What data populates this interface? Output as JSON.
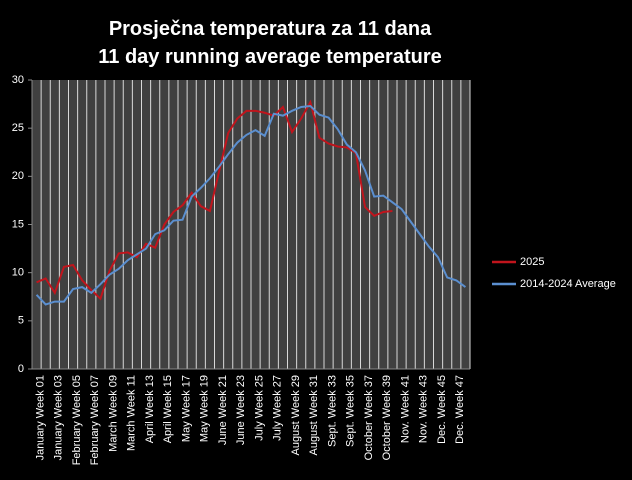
{
  "chart_data": {
    "type": "line",
    "title": [
      "Prosječna temperatura za 11 dana",
      "11 day running average temperature"
    ],
    "categories": [
      "January Week 01",
      null,
      "January Week 03",
      null,
      "February Week 05",
      null,
      "February Week 07",
      null,
      "March Week 09",
      null,
      "March Week 11",
      null,
      "April Week 13",
      null,
      "April Week 15",
      null,
      "May Week 17",
      null,
      "May Week 19",
      null,
      "June Week 21",
      null,
      "June Week 23",
      null,
      "July Week 25",
      null,
      "July Week 27",
      null,
      "August Week 29",
      null,
      "August Week 31",
      null,
      "Sept. Week 33",
      null,
      "Sept. Week 35",
      null,
      "October Week 37",
      null,
      "October Week 39",
      null,
      "Nov. Week 41",
      null,
      "Nov. Week 43",
      null,
      "Dec. Week 45",
      null,
      "Dec. Week 47",
      null
    ],
    "series": [
      {
        "name": "2025",
        "color": "#c0141c",
        "values": [
          9.0,
          9.4,
          7.9,
          10.6,
          10.8,
          9.2,
          8.2,
          7.3,
          10.2,
          12.0,
          12.1,
          11.6,
          13.0,
          12.6,
          15.0,
          16.3,
          17.0,
          18.3,
          16.9,
          16.4,
          20.5,
          24.5,
          26.0,
          26.8,
          26.8,
          26.6,
          26.3,
          27.2,
          24.6,
          26.0,
          27.7,
          24.0,
          23.4,
          23.1,
          23.0,
          22.4,
          16.8,
          15.9,
          16.3,
          16.4,
          null,
          null,
          null,
          null,
          null,
          null,
          null,
          null
        ]
      },
      {
        "name": "2014-2024 Average",
        "color": "#5b8fd0",
        "values": [
          7.7,
          6.7,
          7.0,
          7.0,
          8.3,
          8.5,
          7.9,
          8.8,
          9.8,
          10.4,
          11.3,
          11.9,
          12.5,
          14.0,
          14.4,
          15.4,
          15.5,
          17.9,
          18.8,
          19.8,
          21.0,
          22.3,
          23.5,
          24.3,
          24.8,
          24.2,
          26.5,
          26.3,
          26.8,
          27.2,
          27.3,
          26.4,
          26.1,
          24.9,
          23.3,
          22.5,
          20.6,
          17.9,
          18.0,
          17.3,
          16.6,
          15.3,
          14.0,
          12.7,
          11.6,
          9.5,
          9.2,
          8.5
        ]
      }
    ],
    "ylim": [
      0,
      30
    ],
    "yticks": [
      0,
      5,
      10,
      15,
      20,
      25,
      30
    ],
    "grid": true,
    "legend": "right"
  }
}
